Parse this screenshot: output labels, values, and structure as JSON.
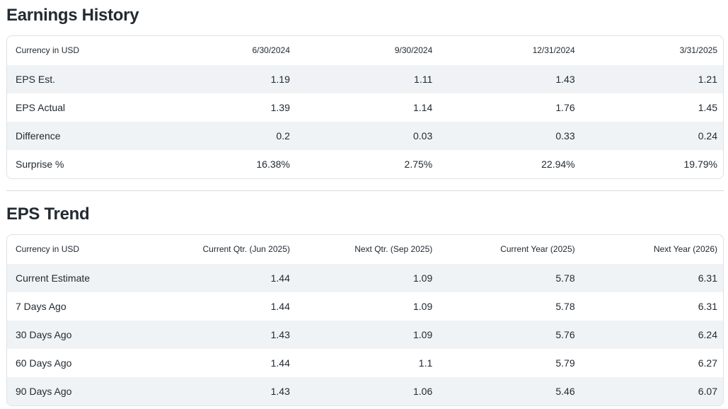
{
  "colors": {
    "text": "#232a31",
    "row_alt_bg": "#f0f3f5",
    "table_border": "#dde2e7",
    "divider": "#dcdcdc",
    "background": "#ffffff"
  },
  "earnings_history": {
    "title": "Earnings History",
    "columns": [
      "Currency in USD",
      "6/30/2024",
      "9/30/2024",
      "12/31/2024",
      "3/31/2025"
    ],
    "rows": [
      {
        "label": "EPS Est.",
        "values": [
          "1.19",
          "1.11",
          "1.43",
          "1.21"
        ]
      },
      {
        "label": "EPS Actual",
        "values": [
          "1.39",
          "1.14",
          "1.76",
          "1.45"
        ]
      },
      {
        "label": "Difference",
        "values": [
          "0.2",
          "0.03",
          "0.33",
          "0.24"
        ]
      },
      {
        "label": "Surprise %",
        "values": [
          "16.38%",
          "2.75%",
          "22.94%",
          "19.79%"
        ]
      }
    ]
  },
  "eps_trend": {
    "title": "EPS Trend",
    "columns": [
      "Currency in USD",
      "Current Qtr. (Jun 2025)",
      "Next Qtr. (Sep 2025)",
      "Current Year (2025)",
      "Next Year (2026)"
    ],
    "rows": [
      {
        "label": "Current Estimate",
        "values": [
          "1.44",
          "1.09",
          "5.78",
          "6.31"
        ]
      },
      {
        "label": "7 Days Ago",
        "values": [
          "1.44",
          "1.09",
          "5.78",
          "6.31"
        ]
      },
      {
        "label": "30 Days Ago",
        "values": [
          "1.43",
          "1.09",
          "5.76",
          "6.24"
        ]
      },
      {
        "label": "60 Days Ago",
        "values": [
          "1.44",
          "1.1",
          "5.79",
          "6.27"
        ]
      },
      {
        "label": "90 Days Ago",
        "values": [
          "1.43",
          "1.06",
          "5.46",
          "6.07"
        ]
      }
    ]
  }
}
